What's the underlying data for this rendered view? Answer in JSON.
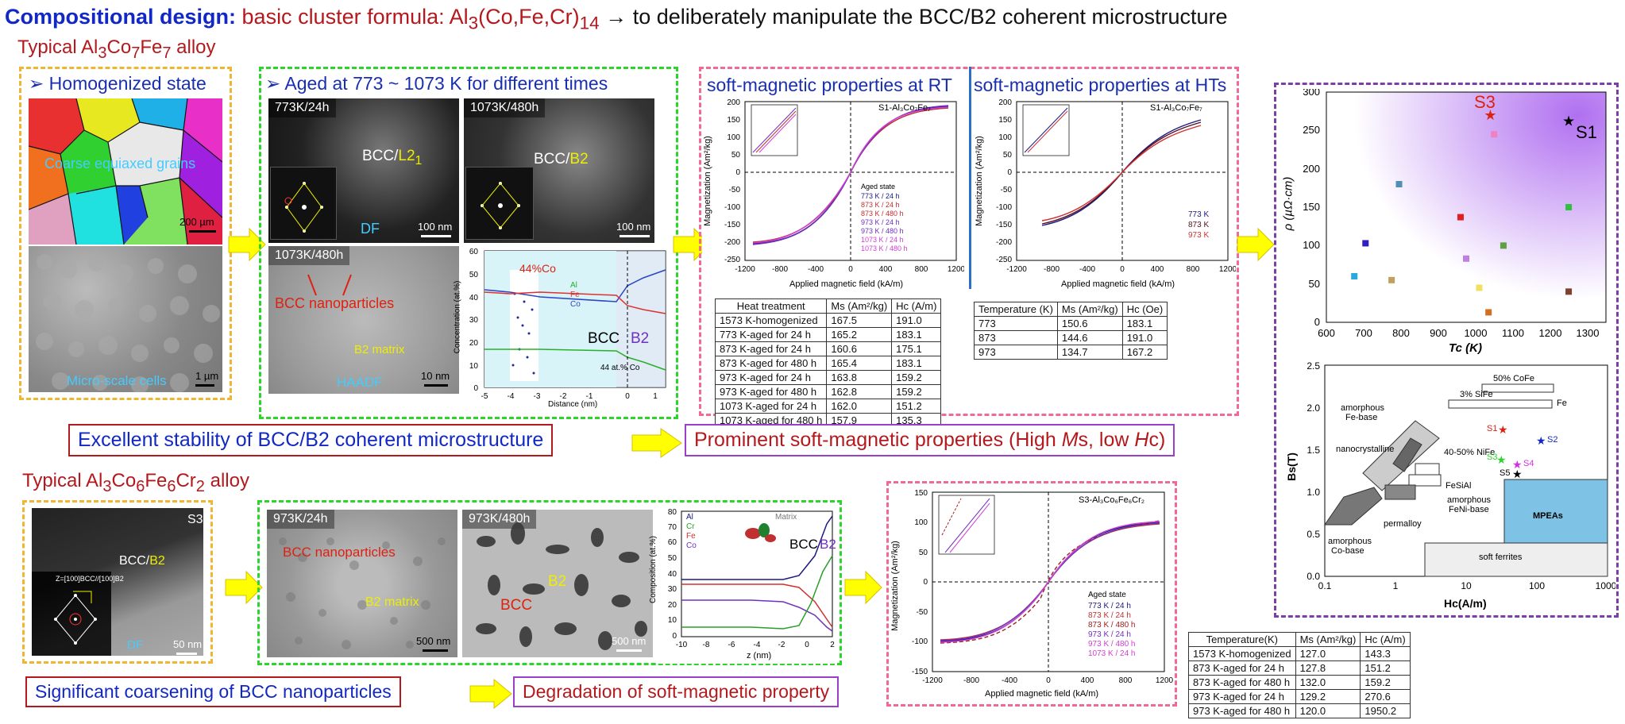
{
  "title": {
    "bold": "Compositional design:",
    "formula_a": "basic cluster formula: Al",
    "formula_sub1": "3",
    "formula_b": "(Co,Fe,Cr)",
    "formula_sub2": "14",
    "rest": "→ to deliberately manipulate the BCC/B2 coherent microstructure"
  },
  "alloy1": {
    "a": "Typical Al",
    "s1": "3",
    "b": "Co",
    "s2": "7",
    "c": "Fe",
    "s3": "7",
    "d": " alloy"
  },
  "alloy2": {
    "a": "Typical Al",
    "s1": "3",
    "b": "Co",
    "s2": "6",
    "c": "Fe",
    "s3": "6",
    "d": "Cr",
    "s4": "2",
    "e": " alloy"
  },
  "homog": {
    "head": "➢  Homogenized state",
    "grains": "Coarse equiaxed grains",
    "scale1": "200 µm",
    "cells": "Micro-scale cells",
    "scale2": "1 µm"
  },
  "aged": {
    "head": "➢  Aged at 773 ~ 1073 K for different times",
    "img1_label": "773K/24h",
    "img1_phase_a": "BCC/",
    "img1_phase_b": "L2",
    "img1_phase_sub": "1",
    "img1_df": "DF",
    "img1_scale": "100 nm",
    "img2_label": "1073K/480h",
    "img2_phase_a": "BCC/",
    "img2_phase_b": "B2",
    "img2_scale": "100 nm",
    "img3_label": "1073K/480h",
    "img3_np": "BCC nanoparticles",
    "img3_matrix": "B2 matrix",
    "img3_haadf": "HAADF",
    "img3_scale": "10 nm"
  },
  "apt1": {
    "pct": "44%Co",
    "bcc": "BCC",
    "b2": "B2",
    "note": "44 at.% Co",
    "ylabel": "Concentration (at.%)",
    "xlabel": "Distance (nm)",
    "legend": [
      "Al",
      "Fe",
      "Co"
    ],
    "xticks": [
      "-5",
      "-4",
      "-3",
      "-2",
      "-1",
      "0",
      "1"
    ],
    "yticks": [
      "0",
      "10",
      "20",
      "30",
      "40",
      "50",
      "60"
    ]
  },
  "rt": {
    "head": "soft-magnetic properties at RT",
    "plot_label": "S1-Al₃Co₇Fe₇",
    "legend_title": "Aged state",
    "legend": [
      "773 K / 24 h",
      "873 K / 24 h",
      "873 K / 480 h",
      "973 K / 24 h",
      "973 K / 480 h",
      "1073 K / 24 h",
      "1073 K / 480 h"
    ],
    "ylabel": "Magnetization (Am²/kg)",
    "xlabel": "Applied magnetic field (kA/m)",
    "xticks": [
      "-1200",
      "-800",
      "-400",
      "0",
      "400",
      "800",
      "1200"
    ],
    "yticks": [
      "-250",
      "-200",
      "-150",
      "-100",
      "-50",
      "0",
      "50",
      "100",
      "150",
      "200"
    ]
  },
  "ht": {
    "head": "soft-magnetic properties at HTs",
    "plot_label": "S1-Al₃Co₇Fe₇",
    "legend": [
      "773 K",
      "873 K",
      "973 K"
    ],
    "ylabel": "Magnetization (Am²/kg)",
    "xlabel": "Applied magnetic field (kA/m)",
    "xticks": [
      "-1200",
      "-800",
      "-400",
      "0",
      "400",
      "800",
      "1200"
    ],
    "yticks": [
      "-250",
      "-200",
      "-150",
      "-100",
      "-50",
      "0",
      "50",
      "100",
      "150",
      "200"
    ]
  },
  "table_rt": {
    "headers": [
      "Heat treatment",
      "Ms (Am²/kg)",
      "Hc (A/m)"
    ],
    "rows": [
      [
        "1573 K-homogenized",
        "167.5",
        "191.0"
      ],
      [
        "773 K-aged for 24 h",
        "165.2",
        "183.1"
      ],
      [
        "873 K-aged for 24 h",
        "160.6",
        "175.1"
      ],
      [
        "873 K-aged for 480 h",
        "165.4",
        "183.1"
      ],
      [
        "973 K-aged for 24 h",
        "163.8",
        "159.2"
      ],
      [
        "973 K-aged for 480 h",
        "162.8",
        "159.2"
      ],
      [
        "1073 K-aged for 24 h",
        "162.0",
        "151.2"
      ],
      [
        "1073 K-aged for 480 h",
        "157.9",
        "135.3"
      ]
    ]
  },
  "table_ht": {
    "headers": [
      "Temperature (K)",
      "Ms (Am²/kg)",
      "Hc (Oe)"
    ],
    "rows": [
      [
        "773",
        "150.6",
        "183.1"
      ],
      [
        "873",
        "144.6",
        "191.0"
      ],
      [
        "973",
        "134.7",
        "167.2"
      ]
    ]
  },
  "conclusion1": "Excellent stability of BCC/B2 coherent microstructure",
  "conclusion2": {
    "a": "Prominent soft-magnetic properties (High ",
    "ms": "M",
    "ms2": "s, low ",
    "hc": "H",
    "hc2": "c)"
  },
  "s3": {
    "label": "S3",
    "phase_a": "BCC/",
    "phase_b": "B2",
    "df": "DF",
    "scale": "50 nm",
    "zone": "Z=[100]BCC//[100]B2"
  },
  "aged2": {
    "img1_label": "973K/24h",
    "img1_np": "BCC nanoparticles",
    "img1_matrix": "B2 matrix",
    "img1_scale": "500 nm",
    "img2_label": "973K/480h",
    "img2_b2": "B2",
    "img2_bcc": "BCC",
    "img2_scale": "500 nm"
  },
  "apt2": {
    "legend": [
      "Al",
      "Cr",
      "Fe",
      "Co"
    ],
    "matrix": "Matrix",
    "bcc": "BCC",
    "b2": "B2",
    "ylabel": "Composition (at.%)",
    "xlabel": "z (nm)",
    "xticks": [
      "-10",
      "-8",
      "-6",
      "-4",
      "-2",
      "0",
      "2"
    ],
    "yticks": [
      "0",
      "10",
      "20",
      "30",
      "40",
      "50",
      "60",
      "70",
      "80"
    ]
  },
  "s3plot": {
    "label": "S3-Al₃Co₆Fe₆Cr₂",
    "legend_title": "Aged state",
    "legend": [
      "773 K / 24 h",
      "873 K / 24 h",
      "873 K / 480 h",
      "973 K / 24 h",
      "973 K / 480 h",
      "1073 K / 24 h"
    ],
    "ylabel": "Magnetization (Am²/kg)",
    "xlabel": "Applied magnetic field (kA/m)",
    "xticks": [
      "-1200",
      "-800",
      "-400",
      "0",
      "400",
      "800",
      "1200"
    ],
    "yticks": [
      "-150",
      "-100",
      "-50",
      "0",
      "50",
      "100",
      "150"
    ]
  },
  "table_s3": {
    "headers": [
      "Temperature(K)",
      "Ms (Am²/kg)",
      "Hc (A/m)"
    ],
    "rows": [
      [
        "1573 K-homogenized",
        "127.0",
        "143.3"
      ],
      [
        "873 K-aged for 24 h",
        "127.8",
        "151.2"
      ],
      [
        "873 K-aged for 480 h",
        "132.0",
        "159.2"
      ],
      [
        "973 K-aged for 24 h",
        "129.2",
        "270.6"
      ],
      [
        "973 K-aged for 480 h",
        "120.0",
        "1950.2"
      ]
    ]
  },
  "conclusion3": "Significant coarsening of BCC nanoparticles",
  "conclusion4": "Degradation of soft-magnetic property",
  "rho": {
    "ylabel": "ρ (µΩ·cm)",
    "xlabel": "Tc (K)",
    "s1": "S1",
    "s3": "S3",
    "xticks": [
      "600",
      "700",
      "800",
      "900",
      "1000",
      "1100",
      "1200",
      "1300"
    ],
    "yticks": [
      "0",
      "50",
      "100",
      "150",
      "200",
      "250",
      "300"
    ]
  },
  "bs": {
    "ylabel": "Bs(T)",
    "xlabel": "Hc(A/m)",
    "xticks": [
      "0.1",
      "1",
      "10",
      "100",
      "1000"
    ],
    "yticks": [
      "0.0",
      "0.5",
      "1.0",
      "1.5",
      "2.0",
      "2.5"
    ],
    "labels": {
      "cofe": "50% CoFe",
      "sife": "3% SiFe",
      "fe": "Fe",
      "amfe": "amorphous",
      "amfe2": "Fe-base",
      "nano": "nanocrystalline",
      "nife": "40-50% NiFe",
      "fesial": "FeSiAl",
      "amfeni": "amorphous",
      "amfeni2": "FeNi-base",
      "perm": "permalloy",
      "amco": "amorphous",
      "amco2": "Co-base",
      "mpea": "MPEAs",
      "soft": "soft ferrites",
      "s1": "S1",
      "s2": "S2",
      "s3": "S3",
      "s4": "S4",
      "s5": "S5"
    }
  },
  "chart_data": [
    {
      "type": "scatter",
      "title": "",
      "xlabel": "Tc (K)",
      "ylabel": "ρ (µΩ·cm)",
      "xlim": [
        600,
        1350
      ],
      "ylim": [
        0,
        300
      ],
      "series": [
        {
          "name": "S1",
          "x": [
            1250
          ],
          "y": [
            262
          ]
        },
        {
          "name": "S3",
          "x": [
            1040
          ],
          "y": [
            270
          ]
        },
        {
          "name": "",
          "x": [
            675,
            705,
            775,
            795,
            960,
            975,
            1010,
            1035,
            1050,
            1075,
            1250,
            1250
          ],
          "y": [
            60,
            103,
            55,
            180,
            137,
            83,
            45,
            13,
            245,
            100,
            150,
            40
          ]
        }
      ]
    },
    {
      "type": "line",
      "title": "S1-Al₃Co₇Fe₇",
      "xlabel": "Applied magnetic field (kA/m)",
      "ylabel": "Magnetization (Am²/kg)",
      "xlim": [
        -1200,
        1200
      ],
      "ylim": [
        -250,
        200
      ],
      "series": [
        {
          "name": "773 K / 24 h",
          "x": [
            -1200,
            -800,
            -400,
            0,
            400,
            800,
            1200
          ],
          "y": [
            -165,
            -158,
            -95,
            0,
            95,
            158,
            165
          ]
        }
      ]
    },
    {
      "type": "line",
      "title": "S1-Al₃Co₇Fe₇",
      "xlabel": "Applied magnetic field (kA/m)",
      "ylabel": "Magnetization (Am²/kg)",
      "xlim": [
        -1200,
        1200
      ],
      "ylim": [
        -250,
        200
      ],
      "series": [
        {
          "name": "773 K",
          "x": [
            -900,
            -400,
            0,
            400,
            900
          ],
          "y": [
            -150,
            -100,
            0,
            100,
            150
          ]
        },
        {
          "name": "873 K",
          "x": [
            -900,
            -400,
            0,
            400,
            900
          ],
          "y": [
            -144,
            -95,
            0,
            95,
            144
          ]
        },
        {
          "name": "973 K",
          "x": [
            -900,
            -400,
            0,
            400,
            900
          ],
          "y": [
            -134,
            -88,
            0,
            88,
            134
          ]
        }
      ]
    },
    {
      "type": "line",
      "title": "S3-Al₃Co₆Fe₆Cr₂",
      "xlabel": "Applied magnetic field (kA/m)",
      "ylabel": "Magnetization (Am²/kg)",
      "xlim": [
        -1200,
        1200
      ],
      "ylim": [
        -150,
        150
      ],
      "series": [
        {
          "name": "773 K / 24 h",
          "x": [
            -1200,
            -600,
            0,
            600,
            1200
          ],
          "y": [
            -128,
            -100,
            0,
            100,
            128
          ]
        }
      ]
    }
  ],
  "colors": {
    "blue": "#1228c4",
    "red": "#b3191d",
    "yellow": "#f0b632",
    "green": "#2cd42c",
    "pink": "#ef6b93",
    "purple": "#7b3fa5",
    "arrow": "#ffff00"
  }
}
